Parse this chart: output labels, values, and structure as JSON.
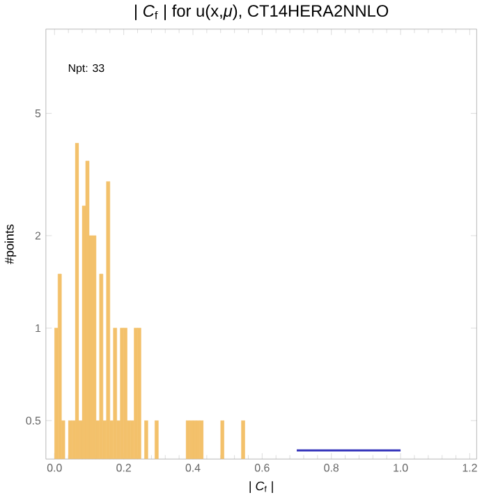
{
  "chart_data": {
    "type": "histogram",
    "title": "| *C*$_{f}$ | for u(x,*μ*), CT14HERA2NNLO",
    "xlabel": "| *C*$_{f}$ |",
    "ylabel": "#points",
    "annotations": [
      "Npt: 33"
    ],
    "bins": [
      0,
      0.01,
      0.02,
      0.03,
      0.04,
      0.05,
      0.06,
      0.07,
      0.08,
      0.09,
      0.1,
      0.11,
      0.12,
      0.13,
      0.14,
      0.15,
      0.16,
      0.17,
      0.18,
      0.19,
      0.2,
      0.21,
      0.22,
      0.23,
      0.24,
      0.25,
      0.26,
      0.27,
      0.28,
      0.29,
      0.3,
      0.31,
      0.32,
      0.33,
      0.34,
      0.35,
      0.36,
      0.37,
      0.38,
      0.39,
      0.4,
      0.41,
      0.42,
      0.43,
      0.44,
      0.45,
      0.46,
      0.47,
      0.48,
      0.49,
      0.5,
      0.51,
      0.52,
      0.53,
      0.54,
      0.55
    ],
    "values": [
      1,
      1.5,
      0.5,
      null,
      0.5,
      0.5,
      4,
      0.5,
      2.5,
      3.5,
      2,
      2,
      0.5,
      1.5,
      0.5,
      3,
      0.5,
      1,
      0.5,
      1,
      1,
      0.5,
      0.5,
      1,
      1,
      null,
      0.5,
      null,
      null,
      0.5,
      null,
      null,
      null,
      null,
      null,
      null,
      null,
      null,
      0.5,
      0.5,
      0.5,
      0.5,
      0.5,
      null,
      null,
      null,
      null,
      null,
      0.5,
      null,
      null,
      null,
      null,
      null,
      0.5
    ],
    "color": "#f3c16b",
    "series": [
      {
        "type": "line",
        "x": [
          0.7,
          1.0
        ],
        "values": [
          0.4,
          0.4
        ],
        "color": "#3333bb"
      }
    ],
    "log": "y",
    "xlim": [
      -0.025,
      1.22
    ],
    "ylim": [
      0.375,
      9.4
    ],
    "xticks": [
      {
        "value": 0,
        "label": "0.0"
      },
      0.2,
      0.4,
      0.6,
      0.8,
      {
        "value": 1,
        "label": "1.0"
      },
      1.2
    ],
    "yticks": [
      0.5,
      1,
      2,
      5
    ]
  }
}
